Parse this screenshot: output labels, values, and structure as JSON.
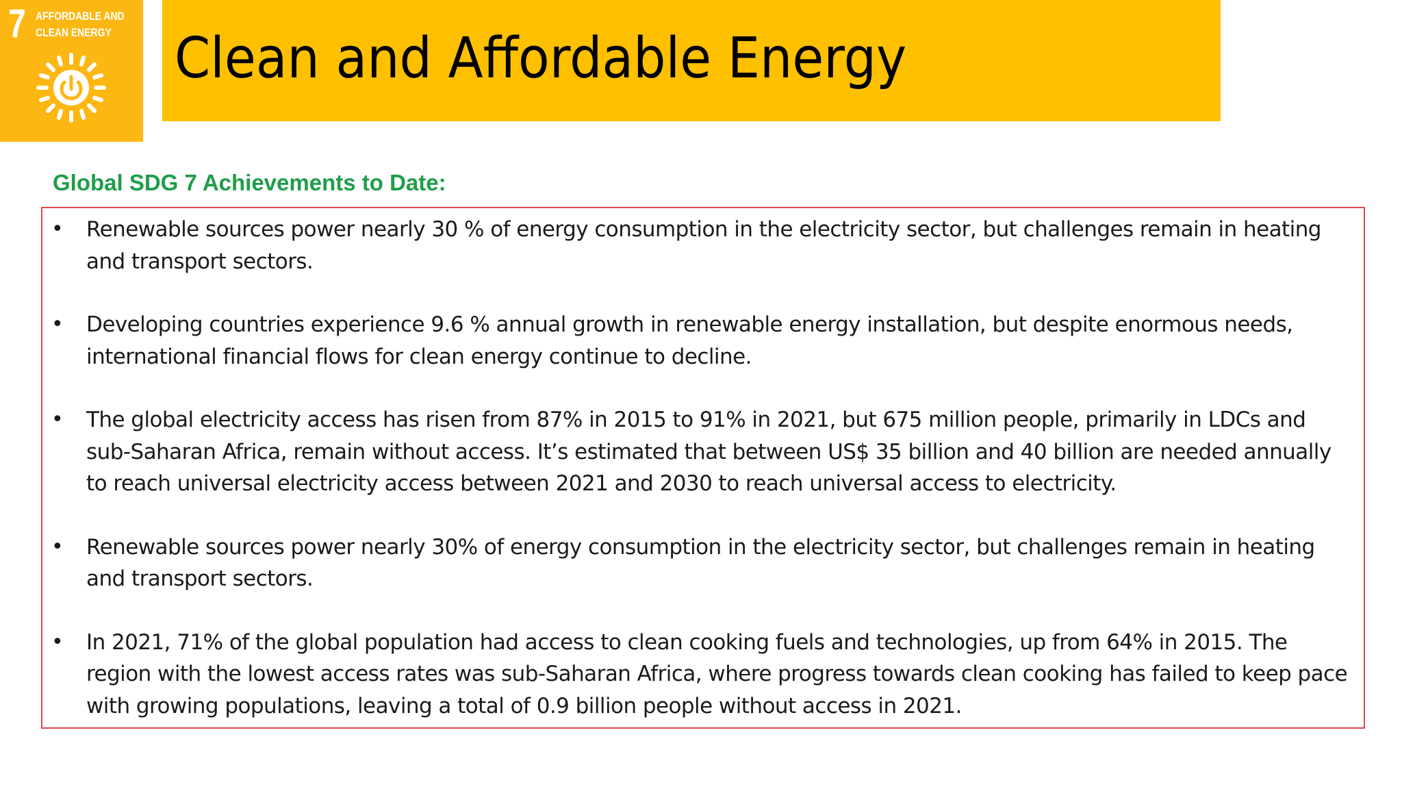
{
  "sdg_badge": {
    "number": "7",
    "caption_line1": "AFFORDABLE AND",
    "caption_line2": "CLEAN ENERGY",
    "icon": "sun-power-icon",
    "color": "#FDB713"
  },
  "header": {
    "title": "Clean and Affordable Energy",
    "background_color": "#FFC000"
  },
  "section": {
    "heading": "Global SDG 7 Achievements  to Date:",
    "heading_color": "#1F9D49",
    "border_color": "#E0474C",
    "bullets": [
      {
        "text": "Renewable sources power nearly 30 % of energy consumption in the electricity sector, but challenges remain in heating and transport sectors."
      },
      {
        "text": "Developing countries experience 9.6 % annual growth in renewable energy installation, but despite enormous needs, international financial flows for clean energy continue to decline."
      },
      {
        "text": "The global electricity access has risen from 87% in 2015 to 91% in 2021, but 675 million people, primarily in LDCs and sub-Saharan Africa, remain without access. It’s estimated that between US$ 35 billion and 40 billion are needed annually to reach universal electricity access between 2021 and 2030 to reach universal access to electricity."
      },
      {
        "text": "Renewable sources power nearly 30% of energy consumption in the electricity sector, but challenges remain in heating and transport sectors."
      },
      {
        "text": "In 2021, 71% of the global population had access to clean cooking fuels and technologies, up from 64% in 2015. The region with the lowest access rates was sub-Saharan Africa, where progress towards clean cooking has failed to keep pace with growing populations, leaving a total of 0.9 billion people without access in 2021."
      }
    ]
  }
}
